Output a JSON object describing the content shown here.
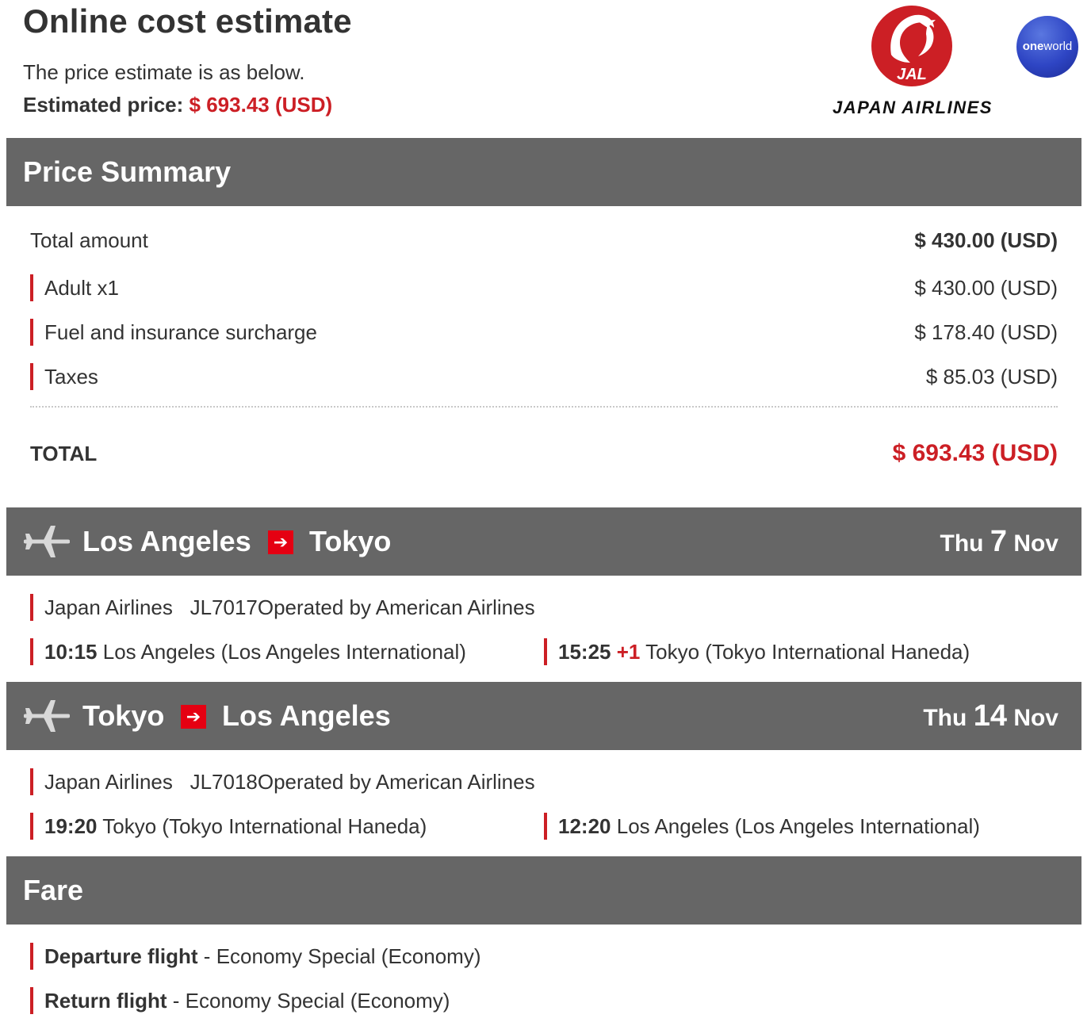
{
  "header": {
    "title": "Online cost estimate",
    "intro": "The price estimate is as below.",
    "estimated_label": "Estimated price:",
    "estimated_value": "$ 693.43 (USD)",
    "logo_text": "JAL",
    "logo_wordmark": "JAPAN AIRLINES",
    "alliance_logo": "oneworld"
  },
  "colors": {
    "accent_red": "#cc1f25",
    "section_bar": "#666666",
    "arrow_red": "#e50012",
    "oneworld_blue": "#2e45c4"
  },
  "price_summary": {
    "title": "Price Summary",
    "total_amount_label": "Total amount",
    "total_amount_value": "$ 430.00 (USD)",
    "items": [
      {
        "label": "Adult x1",
        "value": "$ 430.00 (USD)"
      },
      {
        "label": "Fuel and insurance surcharge",
        "value": "$ 178.40 (USD)"
      },
      {
        "label": "Taxes",
        "value": "$ 85.03 (USD)"
      }
    ],
    "total_label": "TOTAL",
    "total_value": "$ 693.43 (USD)"
  },
  "flights": [
    {
      "icon": "plane-icon",
      "origin": "Los Angeles",
      "destination": "Tokyo",
      "weekday": "Thu",
      "day": "7",
      "month": "Nov",
      "airline": "Japan Airlines",
      "flight_no": "JL7017",
      "operated_by": "Operated by American Airlines",
      "dep_time": "10:15",
      "dep_place": "Los Angeles (Los Angeles International)",
      "arr_time": "15:25",
      "arr_day_offset": "+1",
      "arr_place": "Tokyo (Tokyo International Haneda)"
    },
    {
      "icon": "plane-icon",
      "origin": "Tokyo",
      "destination": "Los Angeles",
      "weekday": "Thu",
      "day": "14",
      "month": "Nov",
      "airline": "Japan Airlines",
      "flight_no": "JL7018",
      "operated_by": "Operated by American Airlines",
      "dep_time": "19:20",
      "dep_place": "Tokyo (Tokyo International Haneda)",
      "arr_time": "12:20",
      "arr_place": "Los Angeles (Los Angeles International)"
    }
  ],
  "fare": {
    "title": "Fare",
    "departure_label": "Departure flight",
    "departure_value": "Economy Special (Economy)",
    "return_label": "Return flight",
    "return_value": "Economy Special (Economy)"
  }
}
